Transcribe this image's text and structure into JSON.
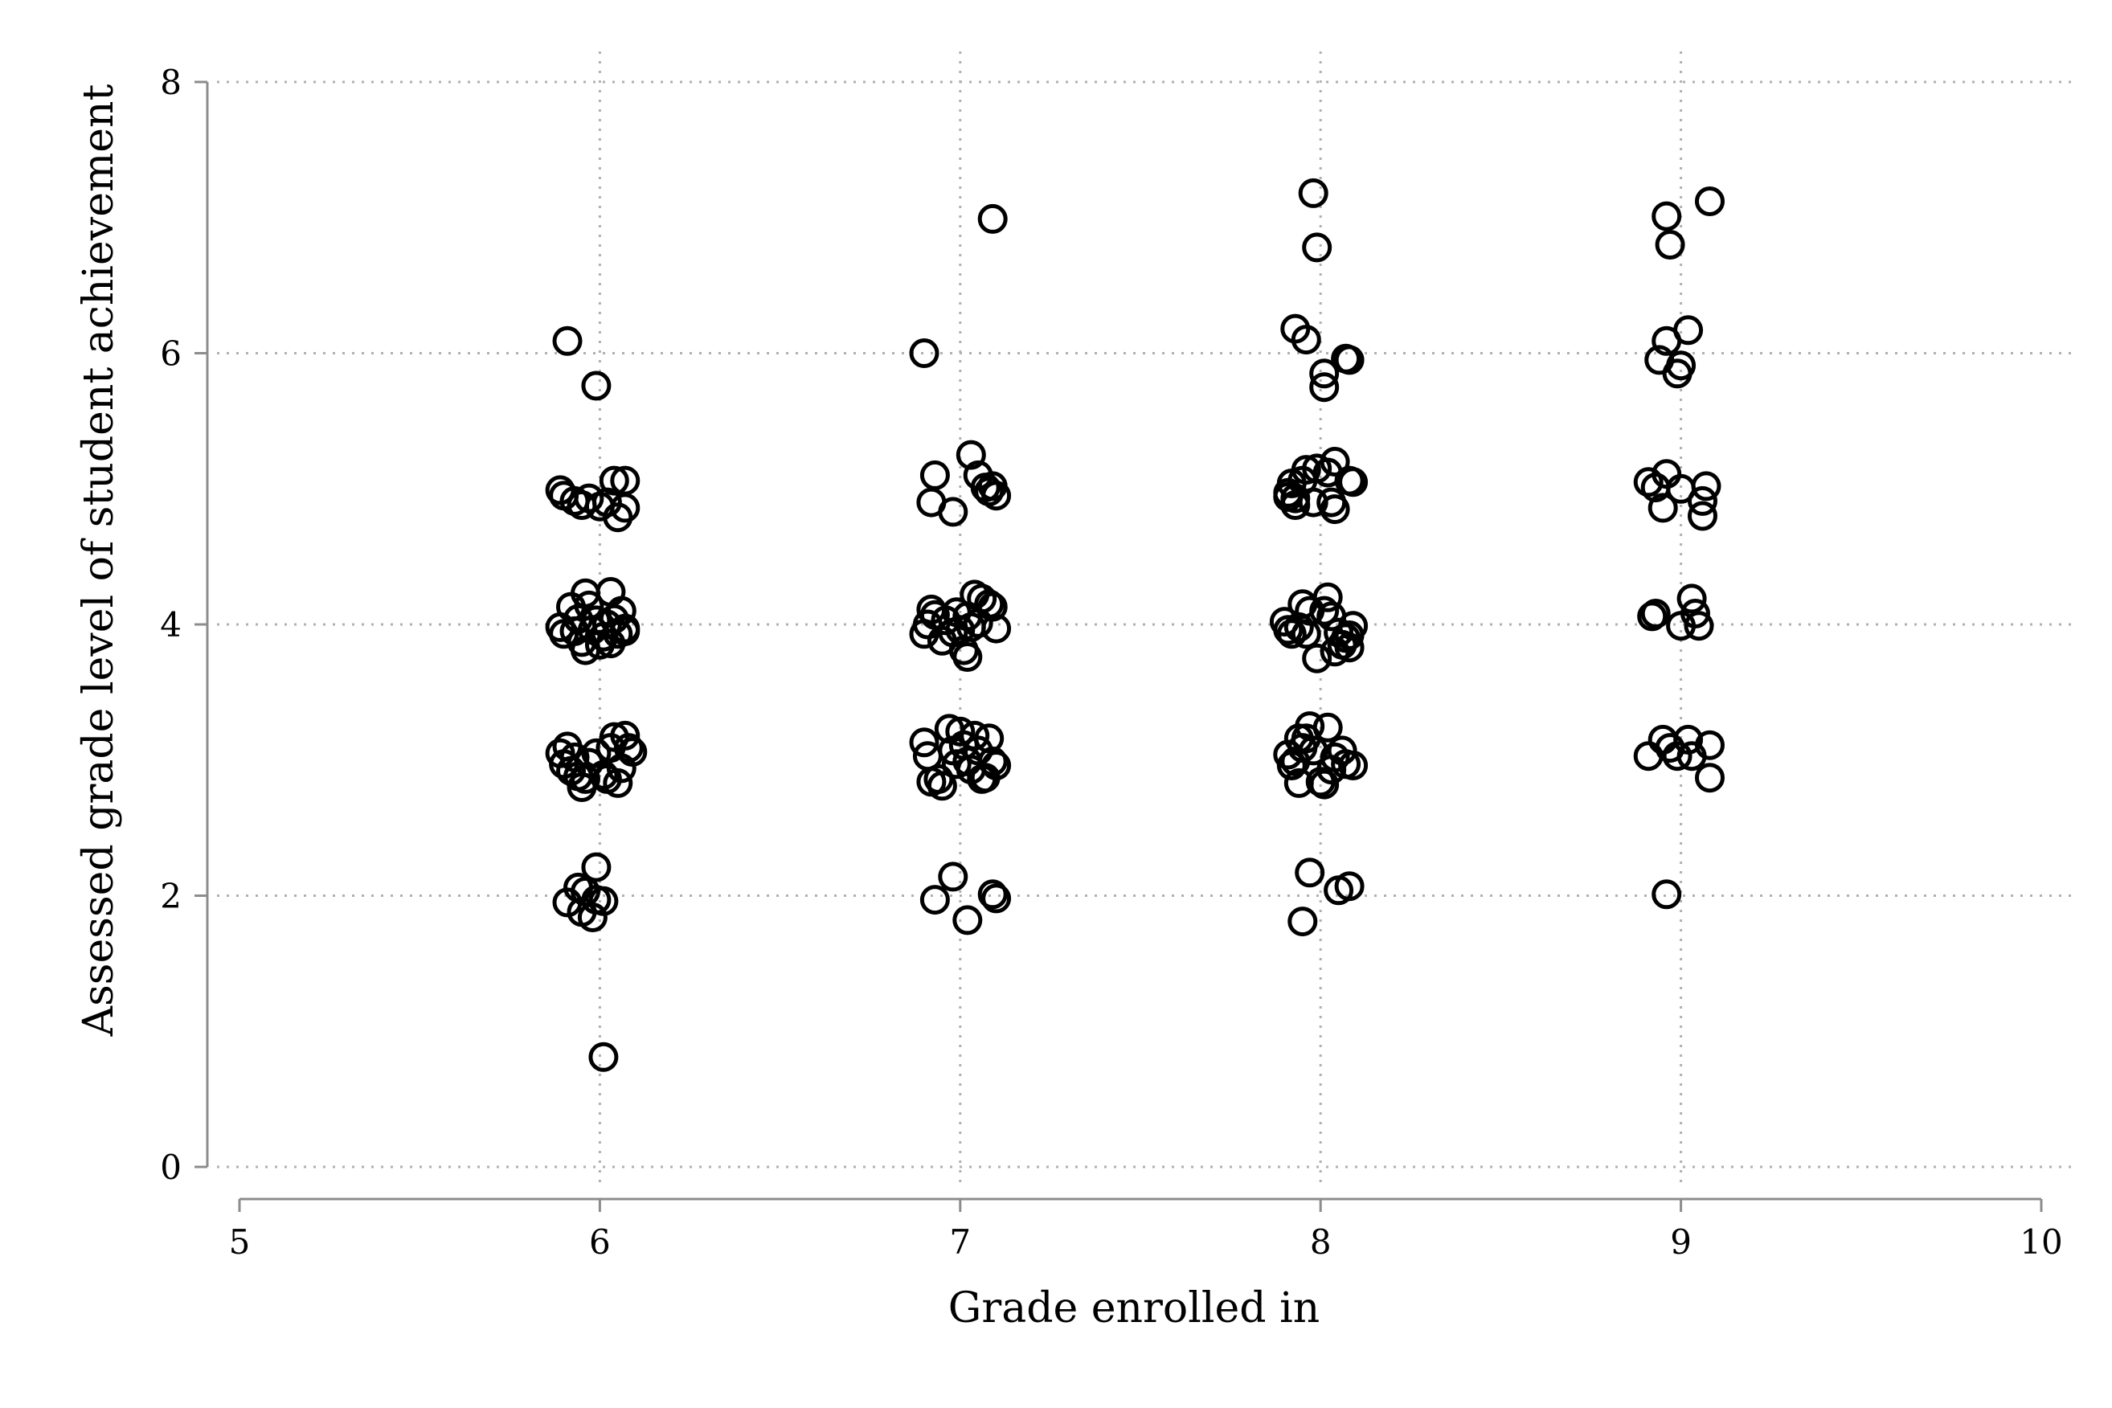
{
  "chart_data": {
    "type": "scatter",
    "title": "",
    "xlabel": "Grade enrolled in",
    "ylabel": "Assessed grade level of student achievement",
    "xlim": [
      5,
      10
    ],
    "ylim": [
      0,
      8
    ],
    "x_ticks": [
      5,
      6,
      7,
      8,
      9,
      10
    ],
    "x_tick_labels": [
      "5",
      "6",
      "7",
      "8",
      "9",
      "10"
    ],
    "y_ticks": [
      0,
      2,
      4,
      6,
      8
    ],
    "y_tick_labels": [
      "0",
      "2",
      "4",
      "6",
      "8"
    ],
    "grid": "dotted horizontal and vertical gridlines at ticks",
    "legend": "none",
    "marker": "hollow circle",
    "colors": {
      "marker": "#000000",
      "axis": "#8c8c8c",
      "grid": "#b0b0b0"
    },
    "series": [
      {
        "points": [
          [
            5.91,
            6.09
          ],
          [
            5.99,
            5.76
          ],
          [
            5.89,
            4.99
          ],
          [
            5.9,
            4.95
          ],
          [
            5.93,
            4.91
          ],
          [
            5.95,
            4.88
          ],
          [
            5.97,
            4.93
          ],
          [
            6.0,
            4.87
          ],
          [
            6.02,
            4.9
          ],
          [
            6.04,
            5.06
          ],
          [
            6.05,
            4.79
          ],
          [
            6.07,
            5.06
          ],
          [
            6.07,
            4.86
          ],
          [
            5.89,
            3.98
          ],
          [
            5.9,
            3.93
          ],
          [
            5.92,
            4.13
          ],
          [
            5.93,
            3.95
          ],
          [
            5.94,
            4.04
          ],
          [
            5.95,
            3.87
          ],
          [
            5.96,
            4.23
          ],
          [
            5.96,
            3.81
          ],
          [
            5.97,
            4.14
          ],
          [
            5.98,
            3.96
          ],
          [
            5.99,
            4.03
          ],
          [
            6.0,
            3.85
          ],
          [
            6.01,
            3.91
          ],
          [
            6.02,
            4.0
          ],
          [
            6.03,
            4.24
          ],
          [
            6.03,
            3.86
          ],
          [
            6.04,
            4.04
          ],
          [
            6.05,
            3.93
          ],
          [
            6.06,
            4.1
          ],
          [
            6.07,
            3.97
          ],
          [
            6.07,
            3.95
          ],
          [
            5.89,
            3.05
          ],
          [
            5.9,
            2.97
          ],
          [
            5.91,
            3.1
          ],
          [
            5.92,
            2.92
          ],
          [
            5.93,
            3.02
          ],
          [
            5.94,
            2.88
          ],
          [
            5.95,
            2.8
          ],
          [
            5.96,
            2.86
          ],
          [
            5.97,
            2.98
          ],
          [
            5.99,
            3.05
          ],
          [
            6.01,
            2.89
          ],
          [
            6.02,
            2.86
          ],
          [
            6.03,
            3.09
          ],
          [
            6.04,
            3.17
          ],
          [
            6.05,
            2.83
          ],
          [
            6.06,
            2.94
          ],
          [
            6.07,
            3.18
          ],
          [
            6.08,
            3.09
          ],
          [
            6.09,
            3.06
          ],
          [
            5.91,
            1.95
          ],
          [
            5.94,
            2.06
          ],
          [
            5.95,
            1.88
          ],
          [
            5.96,
            2.03
          ],
          [
            5.98,
            1.84
          ],
          [
            5.99,
            2.21
          ],
          [
            5.99,
            1.97
          ],
          [
            6.01,
            1.96
          ],
          [
            6.01,
            0.81
          ],
          [
            7.09,
            6.99
          ],
          [
            6.9,
            6.0
          ],
          [
            6.92,
            4.9
          ],
          [
            6.93,
            5.1
          ],
          [
            6.98,
            4.83
          ],
          [
            7.03,
            5.25
          ],
          [
            7.05,
            5.1
          ],
          [
            7.07,
            5.01
          ],
          [
            7.08,
            4.98
          ],
          [
            7.09,
            5.02
          ],
          [
            7.1,
            4.95
          ],
          [
            6.9,
            3.93
          ],
          [
            6.91,
            4.0
          ],
          [
            6.92,
            4.11
          ],
          [
            6.93,
            4.07
          ],
          [
            6.95,
            3.88
          ],
          [
            6.96,
            4.03
          ],
          [
            6.98,
            3.94
          ],
          [
            6.99,
            4.09
          ],
          [
            7.0,
            3.96
          ],
          [
            7.01,
            3.81
          ],
          [
            7.02,
            4.06
          ],
          [
            7.02,
            3.76
          ],
          [
            7.03,
            3.98
          ],
          [
            7.04,
            4.22
          ],
          [
            7.05,
            4.01
          ],
          [
            7.06,
            4.19
          ],
          [
            7.08,
            4.15
          ],
          [
            7.09,
            4.13
          ],
          [
            7.1,
            3.97
          ],
          [
            6.9,
            3.13
          ],
          [
            6.91,
            3.03
          ],
          [
            6.92,
            2.84
          ],
          [
            6.94,
            2.86
          ],
          [
            6.95,
            2.81
          ],
          [
            6.97,
            3.23
          ],
          [
            6.98,
            3.07
          ],
          [
            6.99,
            2.97
          ],
          [
            7.0,
            3.21
          ],
          [
            7.01,
            3.11
          ],
          [
            7.02,
            2.99
          ],
          [
            7.03,
            2.93
          ],
          [
            7.04,
            3.18
          ],
          [
            7.05,
            3.07
          ],
          [
            7.06,
            2.86
          ],
          [
            7.07,
            2.87
          ],
          [
            7.08,
            3.16
          ],
          [
            7.09,
            2.99
          ],
          [
            7.1,
            2.96
          ],
          [
            6.93,
            1.97
          ],
          [
            6.98,
            2.14
          ],
          [
            7.02,
            1.82
          ],
          [
            7.09,
            2.01
          ],
          [
            7.1,
            1.98
          ],
          [
            7.98,
            7.18
          ],
          [
            7.99,
            6.78
          ],
          [
            7.93,
            6.18
          ],
          [
            7.96,
            6.1
          ],
          [
            8.01,
            5.85
          ],
          [
            8.01,
            5.75
          ],
          [
            8.07,
            5.96
          ],
          [
            8.08,
            5.95
          ],
          [
            7.91,
            4.97
          ],
          [
            7.91,
            4.94
          ],
          [
            7.92,
            5.04
          ],
          [
            7.93,
            4.93
          ],
          [
            7.93,
            4.88
          ],
          [
            7.95,
            5.06
          ],
          [
            7.96,
            5.14
          ],
          [
            7.98,
            4.9
          ],
          [
            7.99,
            5.15
          ],
          [
            8.02,
            5.12
          ],
          [
            8.03,
            4.9
          ],
          [
            8.04,
            4.85
          ],
          [
            8.04,
            5.2
          ],
          [
            8.08,
            5.06
          ],
          [
            8.09,
            5.05
          ],
          [
            7.9,
            4.02
          ],
          [
            7.91,
            3.96
          ],
          [
            7.92,
            3.93
          ],
          [
            7.94,
            3.98
          ],
          [
            7.95,
            4.15
          ],
          [
            7.96,
            3.93
          ],
          [
            7.97,
            4.1
          ],
          [
            7.99,
            3.75
          ],
          [
            8.01,
            4.1
          ],
          [
            8.02,
            4.2
          ],
          [
            8.03,
            4.06
          ],
          [
            8.04,
            3.8
          ],
          [
            8.05,
            3.94
          ],
          [
            8.06,
            3.85
          ],
          [
            8.07,
            3.9
          ],
          [
            8.08,
            3.83
          ],
          [
            8.08,
            3.92
          ],
          [
            8.09,
            3.99
          ],
          [
            7.91,
            3.04
          ],
          [
            7.92,
            2.96
          ],
          [
            7.93,
            2.99
          ],
          [
            7.94,
            3.16
          ],
          [
            7.94,
            2.83
          ],
          [
            7.95,
            3.09
          ],
          [
            7.96,
            3.16
          ],
          [
            7.97,
            3.25
          ],
          [
            7.98,
            3.07
          ],
          [
            8.0,
            2.84
          ],
          [
            8.01,
            2.82
          ],
          [
            8.02,
            3.24
          ],
          [
            8.03,
            2.93
          ],
          [
            8.04,
            3.02
          ],
          [
            8.06,
            3.07
          ],
          [
            8.07,
            2.97
          ],
          [
            8.09,
            2.96
          ],
          [
            7.95,
            1.81
          ],
          [
            7.97,
            2.17
          ],
          [
            8.05,
            2.04
          ],
          [
            8.08,
            2.07
          ],
          [
            8.96,
            7.01
          ],
          [
            8.97,
            6.8
          ],
          [
            9.08,
            7.12
          ],
          [
            8.94,
            5.95
          ],
          [
            8.96,
            6.09
          ],
          [
            8.99,
            5.85
          ],
          [
            9.0,
            5.91
          ],
          [
            9.02,
            6.17
          ],
          [
            8.91,
            5.05
          ],
          [
            8.93,
            5.01
          ],
          [
            8.95,
            4.86
          ],
          [
            8.96,
            5.11
          ],
          [
            9.0,
            5.0
          ],
          [
            9.06,
            4.91
          ],
          [
            9.06,
            4.8
          ],
          [
            9.07,
            5.02
          ],
          [
            8.92,
            4.06
          ],
          [
            8.93,
            4.08
          ],
          [
            9.0,
            3.99
          ],
          [
            9.03,
            4.19
          ],
          [
            9.04,
            4.08
          ],
          [
            9.05,
            3.99
          ],
          [
            8.91,
            3.03
          ],
          [
            8.95,
            3.15
          ],
          [
            8.97,
            3.09
          ],
          [
            8.99,
            3.03
          ],
          [
            9.02,
            3.15
          ],
          [
            9.03,
            3.03
          ],
          [
            9.08,
            3.11
          ],
          [
            9.08,
            2.87
          ],
          [
            8.96,
            2.01
          ]
        ]
      }
    ]
  }
}
